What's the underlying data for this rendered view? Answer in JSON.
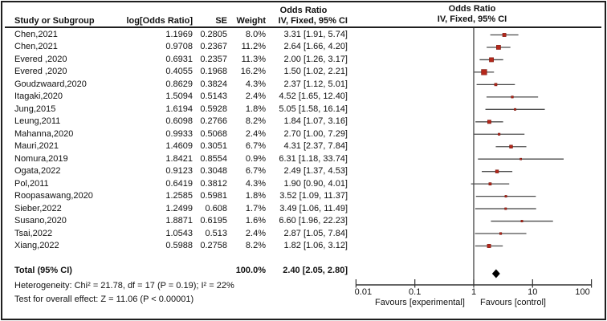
{
  "figure": {
    "or_col_title": "Odds Ratio",
    "plot_title": "Odds Ratio",
    "plot_subtitle": "IV, Fixed, 95% CI"
  },
  "chart_data": {
    "type": "forest",
    "effect_measure": "Odds Ratio",
    "model": "IV, Fixed, 95% CI",
    "columns": {
      "study": "Study or Subgroup",
      "log_or": "log[Odds Ratio]",
      "se": "SE",
      "weight": "Weight",
      "ci": "IV, Fixed, 95% CI"
    },
    "studies": [
      {
        "study": "Chen,2021",
        "log_or": "1.1969",
        "se": "0.2805",
        "weight": "8.0%",
        "weight_pct": 8.0,
        "ci_text": "3.31 [1.91, 5.74]",
        "or": 3.31,
        "lo": 1.91,
        "hi": 5.74
      },
      {
        "study": "Chen,2021",
        "log_or": "0.9708",
        "se": "0.2367",
        "weight": "11.2%",
        "weight_pct": 11.2,
        "ci_text": "2.64 [1.66, 4.20]",
        "or": 2.64,
        "lo": 1.66,
        "hi": 4.2
      },
      {
        "study": "Evered ,2020",
        "log_or": "0.6931",
        "se": "0.2357",
        "weight": "11.3%",
        "weight_pct": 11.3,
        "ci_text": "2.00 [1.26, 3.17]",
        "or": 2.0,
        "lo": 1.26,
        "hi": 3.17
      },
      {
        "study": "Evered ,2020",
        "log_or": "0.4055",
        "se": "0.1968",
        "weight": "16.2%",
        "weight_pct": 16.2,
        "ci_text": "1.50 [1.02, 2.21]",
        "or": 1.5,
        "lo": 1.02,
        "hi": 2.21
      },
      {
        "study": "Goudzwaard,2020",
        "log_or": "0.8629",
        "se": "0.3824",
        "weight": "4.3%",
        "weight_pct": 4.3,
        "ci_text": "2.37 [1.12, 5.01]",
        "or": 2.37,
        "lo": 1.12,
        "hi": 5.01
      },
      {
        "study": "Itagaki,2020",
        "log_or": "1.5094",
        "se": "0.5143",
        "weight": "2.4%",
        "weight_pct": 2.4,
        "ci_text": "4.52 [1.65, 12.40]",
        "or": 4.52,
        "lo": 1.65,
        "hi": 12.4
      },
      {
        "study": "Jung,2015",
        "log_or": "1.6194",
        "se": "0.5928",
        "weight": "1.8%",
        "weight_pct": 1.8,
        "ci_text": "5.05 [1.58, 16.14]",
        "or": 5.05,
        "lo": 1.58,
        "hi": 16.14
      },
      {
        "study": "Leung,2011",
        "log_or": "0.6098",
        "se": "0.2766",
        "weight": "8.2%",
        "weight_pct": 8.2,
        "ci_text": "1.84 [1.07, 3.16]",
        "or": 1.84,
        "lo": 1.07,
        "hi": 3.16
      },
      {
        "study": "Mahanna,2020",
        "log_or": "0.9933",
        "se": "0.5068",
        "weight": "2.4%",
        "weight_pct": 2.4,
        "ci_text": "2.70 [1.00, 7.29]",
        "or": 2.7,
        "lo": 1.0,
        "hi": 7.29
      },
      {
        "study": "Mauri,2021",
        "log_or": "1.4609",
        "se": "0.3051",
        "weight": "6.7%",
        "weight_pct": 6.7,
        "ci_text": "4.31 [2.37, 7.84]",
        "or": 4.31,
        "lo": 2.37,
        "hi": 7.84
      },
      {
        "study": "Nomura,2019",
        "log_or": "1.8421",
        "se": "0.8554",
        "weight": "0.9%",
        "weight_pct": 0.9,
        "ci_text": "6.31 [1.18, 33.74]",
        "or": 6.31,
        "lo": 1.18,
        "hi": 33.74
      },
      {
        "study": "Ogata,2022",
        "log_or": "0.9123",
        "se": "0.3048",
        "weight": "6.7%",
        "weight_pct": 6.7,
        "ci_text": "2.49 [1.37, 4.53]",
        "or": 2.49,
        "lo": 1.37,
        "hi": 4.53
      },
      {
        "study": "Pol,2011",
        "log_or": "0.6419",
        "se": "0.3812",
        "weight": "4.3%",
        "weight_pct": 4.3,
        "ci_text": "1.90 [0.90, 4.01]",
        "or": 1.9,
        "lo": 0.9,
        "hi": 4.01
      },
      {
        "study": "Roopasawang,2020",
        "log_or": "1.2585",
        "se": "0.5981",
        "weight": "1.8%",
        "weight_pct": 1.8,
        "ci_text": "3.52 [1.09, 11.37]",
        "or": 3.52,
        "lo": 1.09,
        "hi": 11.37
      },
      {
        "study": "Sieber,2022",
        "log_or": "1.2499",
        "se": "0.608",
        "weight": "1.7%",
        "weight_pct": 1.7,
        "ci_text": "3.49 [1.06, 11.49]",
        "or": 3.49,
        "lo": 1.06,
        "hi": 11.49
      },
      {
        "study": "Susano,2020",
        "log_or": "1.8871",
        "se": "0.6195",
        "weight": "1.6%",
        "weight_pct": 1.6,
        "ci_text": "6.60 [1.96, 22.23]",
        "or": 6.6,
        "lo": 1.96,
        "hi": 22.23
      },
      {
        "study": "Tsai,2022",
        "log_or": "1.0543",
        "se": "0.513",
        "weight": "2.4%",
        "weight_pct": 2.4,
        "ci_text": "2.87 [1.05, 7.84]",
        "or": 2.87,
        "lo": 1.05,
        "hi": 7.84
      },
      {
        "study": "Xiang,2022",
        "log_or": "0.5988",
        "se": "0.2758",
        "weight": "8.2%",
        "weight_pct": 8.2,
        "ci_text": "1.82 [1.06, 3.12]",
        "or": 1.82,
        "lo": 1.06,
        "hi": 3.12
      }
    ],
    "total": {
      "label": "Total (95% CI)",
      "weight": "100.0%",
      "ci_text": "2.40 [2.05, 2.80]",
      "or": 2.4,
      "lo": 2.05,
      "hi": 2.8
    },
    "heterogeneity": "Heterogeneity: Chi² = 21.78, df = 17 (P = 0.19); I² = 22%",
    "overall_effect": "Test for overall effect: Z = 11.06 (P < 0.00001)",
    "axis": {
      "scale": "log",
      "ticks": [
        0.01,
        0.1,
        1,
        10,
        100
      ],
      "tick_labels": [
        "0.01",
        "0.1",
        "1",
        "10",
        "100"
      ],
      "left_label": "Favours [experimental]",
      "right_label": "Favours [control]"
    },
    "colors": {
      "marker": "#b5281b",
      "marker_stroke": "#7c150c",
      "ci_line": "#4d4d4d",
      "axis": "#333333",
      "diamond": "#000000"
    }
  }
}
